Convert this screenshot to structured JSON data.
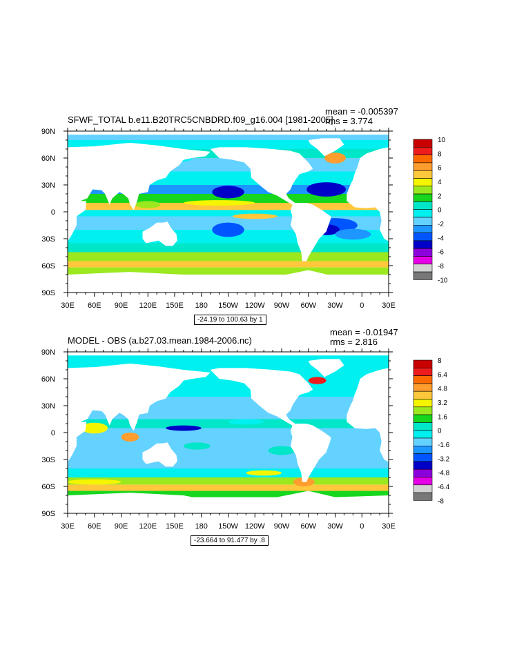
{
  "chart_data": [
    {
      "type": "heatmap",
      "title": "SFWF_TOTAL b.e11.B20TRC5CNBDRD.f09_g16.004 [1981-2005]",
      "stats": {
        "mean": "mean = -0.005397",
        "rms": "rms = 3.774"
      },
      "x_ticks": [
        "30E",
        "60E",
        "90E",
        "120E",
        "150E",
        "180",
        "150W",
        "120W",
        "90W",
        "60W",
        "30W",
        "0",
        "30E"
      ],
      "y_ticks": [
        "90N",
        "60N",
        "30N",
        "0",
        "30S",
        "60S",
        "90S"
      ],
      "xlim": [
        30,
        390
      ],
      "ylim": [
        -90,
        90
      ],
      "range_label": "-24.19 to 100.63 by 1",
      "colorbar": {
        "levels": [
          "10",
          "8",
          "6",
          "4",
          "2",
          "0",
          "-2",
          "-4",
          "-6",
          "-8",
          "-10"
        ],
        "colors": [
          "#c80000",
          "#ee1c1c",
          "#ff6a00",
          "#ff9d2e",
          "#ffc83c",
          "#f5f500",
          "#9be81e",
          "#16d61e",
          "#00e6c8",
          "#00f0f0",
          "#64d2ff",
          "#1e96ff",
          "#0055ff",
          "#0000c8",
          "#8c00dc",
          "#e600e6",
          "#d2d2d2",
          "#787878"
        ]
      }
    },
    {
      "type": "heatmap",
      "title": "MODEL - OBS (a.b27.03.mean.1984-2006.nc)",
      "stats": {
        "mean": "mean = -0.01947",
        "rms": "rms = 2.816"
      },
      "x_ticks": [
        "30E",
        "60E",
        "90E",
        "120E",
        "150E",
        "180",
        "150W",
        "120W",
        "90W",
        "60W",
        "30W",
        "0",
        "30E"
      ],
      "y_ticks": [
        "90N",
        "60N",
        "30N",
        "0",
        "30S",
        "60S",
        "90S"
      ],
      "xlim": [
        30,
        390
      ],
      "ylim": [
        -90,
        90
      ],
      "range_label": "-23.664 to 91.477 by .8",
      "colorbar": {
        "levels": [
          "8",
          "6.4",
          "4.8",
          "3.2",
          "1.6",
          "0",
          "-1.6",
          "-3.2",
          "-4.8",
          "-6.4",
          "-8"
        ],
        "colors": [
          "#c80000",
          "#ee1c1c",
          "#ff6a00",
          "#ff9d2e",
          "#ffc83c",
          "#f5f500",
          "#9be81e",
          "#16d61e",
          "#00e6c8",
          "#00f0f0",
          "#64d2ff",
          "#1e96ff",
          "#0055ff",
          "#0000c8",
          "#8c00dc",
          "#e600e6",
          "#d2d2d2",
          "#787878"
        ]
      }
    }
  ]
}
